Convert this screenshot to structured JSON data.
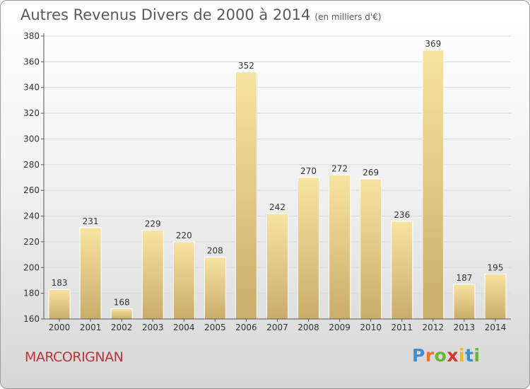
{
  "header": {
    "title": "Autres Revenus Divers de 2000 à 2014",
    "unit": "(en milliers d'€)"
  },
  "footer": {
    "commune": "MARCORIGNAN",
    "logo_letters": [
      "P",
      "r",
      "o",
      "x",
      "i",
      "t",
      "i"
    ],
    "logo_colors": [
      "#3d8fd1",
      "#e8732a",
      "#6bb536",
      "#d9352f",
      "#f0b81e",
      "#3d8fd1",
      "#6bb536"
    ]
  },
  "colors": {
    "bar_light": "#f7e3a1",
    "bar_dark": "#c9ad6a",
    "axis": "#555555",
    "grid": "#d8d8d8",
    "text": "#333333"
  },
  "chart_data": {
    "type": "bar",
    "categories": [
      "2000",
      "2001",
      "2002",
      "2003",
      "2004",
      "2005",
      "2006",
      "2007",
      "2008",
      "2009",
      "2010",
      "2011",
      "2012",
      "2013",
      "2014"
    ],
    "values": [
      183,
      231,
      168,
      229,
      220,
      208,
      352,
      242,
      270,
      272,
      269,
      236,
      369,
      187,
      195
    ],
    "ylim": [
      160,
      380
    ],
    "yticks": [
      160,
      180,
      200,
      220,
      240,
      260,
      280,
      300,
      320,
      340,
      360,
      380
    ],
    "grid": true,
    "data_labels": true
  }
}
